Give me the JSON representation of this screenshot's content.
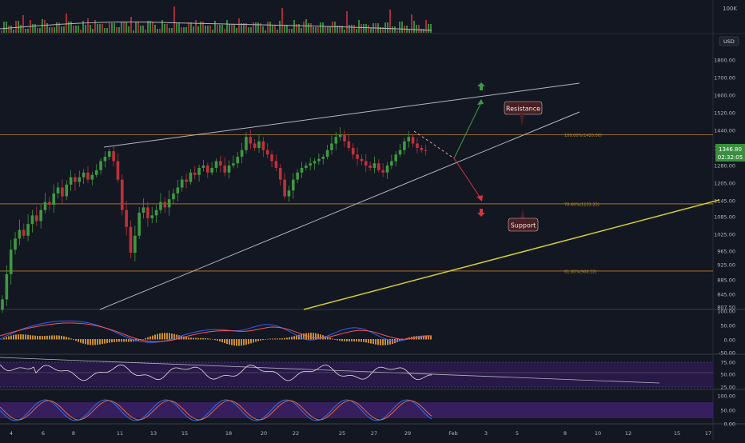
{
  "colors": {
    "background": "#131722",
    "up": "#26a69a",
    "down": "#ef5350",
    "candle_up": "#3d9a3f",
    "candle_down": "#c0303a",
    "wedge": "#b2b5be",
    "trend_yellow": "#d6d02a",
    "fib": "#b8862b",
    "price_badge": "#3a8f3f",
    "macd_line": "#2962ff",
    "signal_line": "#ff5252",
    "hist": "#c98d26",
    "rsi_band": "#3b1f66",
    "stoch_k": "#2f7cf6",
    "stoch_d": "#ff6d3a",
    "arrow_up": "#3c9a47",
    "arrow_down": "#d0343e"
  },
  "price_axis": {
    "currency": "USD",
    "volume_label": "100K",
    "ticks": [
      "1800.00",
      "1700.00",
      "1600.00",
      "1520.00",
      "1440.00",
      "1360.00",
      "1280.00",
      "1205.00",
      "1145.00",
      "1085.00",
      "1025.00",
      "965.00",
      "925.00",
      "885.00",
      "845.00",
      "807.50"
    ],
    "current_price": "1346.80",
    "countdown": "02:32:05"
  },
  "fib_levels": [
    {
      "label": "100.00%(1420.00)",
      "value": 1420
    },
    {
      "label": "78.60%(1133.25)",
      "value": 1133.25
    },
    {
      "label": "61.80%(908.32)",
      "value": 908.32
    }
  ],
  "annotations": {
    "resistance": "Resistance",
    "support": "Support"
  },
  "macd_axis": [
    "100.00",
    "50.00",
    "0.00",
    "-50.00"
  ],
  "rsi_axis": [
    "75.00",
    "50.00",
    "25.00"
  ],
  "stoch_axis": [
    "100.00",
    "50.00",
    "0.00"
  ],
  "time_axis": [
    "4",
    "6",
    "8",
    "11",
    "13",
    "15",
    "18",
    "20",
    "22",
    "25",
    "27",
    "29",
    "Feb",
    "3",
    "5",
    "8",
    "10",
    "12",
    "15",
    "17"
  ],
  "chart_data": {
    "type": "candlestick",
    "symbol_unit": "USD",
    "x_unit": "hourly bars, January to early February",
    "close": [
      830,
      900,
      970,
      1010,
      1040,
      1020,
      1060,
      1090,
      1070,
      1110,
      1140,
      1130,
      1170,
      1190,
      1160,
      1200,
      1230,
      1210,
      1230,
      1250,
      1220,
      1240,
      1260,
      1300,
      1320,
      1345,
      1300,
      1220,
      1110,
      1050,
      960,
      1020,
      1100,
      1120,
      1080,
      1090,
      1110,
      1140,
      1120,
      1150,
      1170,
      1190,
      1220,
      1210,
      1250,
      1240,
      1270,
      1280,
      1250,
      1270,
      1300,
      1280,
      1250,
      1280,
      1290,
      1320,
      1350,
      1410,
      1380,
      1360,
      1390,
      1350,
      1330,
      1300,
      1270,
      1220,
      1160,
      1180,
      1220,
      1250,
      1270,
      1280,
      1290,
      1300,
      1310,
      1320,
      1350,
      1380,
      1410,
      1420,
      1390,
      1360,
      1330,
      1310,
      1300,
      1280,
      1270,
      1290,
      1260,
      1250,
      1280,
      1300,
      1330,
      1350,
      1390,
      1410,
      1380,
      1360,
      1350,
      1346
    ],
    "fib_100": 1420,
    "fib_786": 1133.25,
    "fib_618": 908.32
  }
}
